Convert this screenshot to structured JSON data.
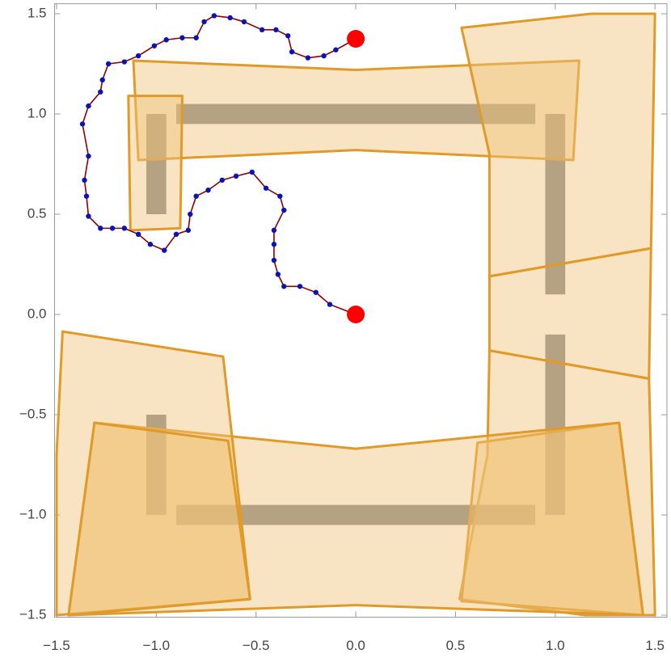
{
  "chart_data": {
    "type": "path-plot",
    "xlim": [
      -1.51,
      1.56
    ],
    "ylim": [
      -1.51,
      1.55
    ],
    "xticks": [
      {
        "value": -1.5,
        "label": "−1.5"
      },
      {
        "value": -1.0,
        "label": "−1.0"
      },
      {
        "value": -0.5,
        "label": "−0.5"
      },
      {
        "value": 0,
        "label": "0.0"
      },
      0.5,
      {
        "value": 1.0,
        "label": "1.0"
      },
      1.5
    ],
    "yticks": [
      {
        "value": -1.5,
        "label": "−1.5"
      },
      {
        "value": -1.0,
        "label": "−1.0"
      },
      {
        "value": -0.5,
        "label": "−0.5"
      },
      {
        "value": 0,
        "label": "0.0"
      },
      0.5,
      {
        "value": 1.0,
        "label": "1.0"
      },
      1.5
    ],
    "rectangles": [
      {
        "x": [
          -0.9,
          0.9
        ],
        "y": [
          0.95,
          1.05
        ]
      },
      {
        "x": [
          -1.05,
          -0.95
        ],
        "y": [
          0.5,
          1.0
        ]
      },
      {
        "x": [
          0.95,
          1.05
        ],
        "y": [
          0.1,
          1.0
        ]
      },
      {
        "x": [
          0.95,
          1.05
        ],
        "y": [
          -1.0,
          -0.1
        ]
      },
      {
        "x": [
          -0.9,
          0.9
        ],
        "y": [
          -1.05,
          -0.95
        ]
      },
      {
        "x": [
          -1.05,
          -0.95
        ],
        "y": [
          -1.0,
          -0.5
        ]
      }
    ],
    "rectangle_color": "#6e7378",
    "polygons": [
      {
        "x": [
          -1.115,
          0,
          1.12,
          1.09,
          0,
          -1.09
        ],
        "y": [
          1.266,
          1.22,
          1.266,
          0.77,
          0.82,
          0.77
        ]
      },
      {
        "x": [
          -1.14,
          -0.87,
          -0.88,
          -1.13
        ],
        "y": [
          1.09,
          1.09,
          0.43,
          0.42
        ]
      },
      {
        "x": [
          0.53,
          1.18,
          1.5,
          1.48,
          0.67,
          0.67
        ],
        "y": [
          1.43,
          1.5,
          1.5,
          0.33,
          0.19,
          0.8
        ]
      },
      {
        "x": [
          0.67,
          1.48,
          1.47,
          0.67
        ],
        "y": [
          0.19,
          0.33,
          -0.32,
          -0.18
        ]
      },
      {
        "x": [
          0.67,
          1.47,
          1.5,
          1.15,
          0.52,
          0.66
        ],
        "y": [
          -0.18,
          -0.32,
          -1.5,
          -1.5,
          -1.42,
          -0.7
        ]
      },
      {
        "x": [
          0.61,
          1.32,
          1.44,
          0.53
        ],
        "y": [
          -0.64,
          -0.54,
          -1.5,
          -1.43
        ]
      },
      {
        "x": [
          -1.31,
          0,
          1.32,
          1.44,
          0,
          -1.44
        ],
        "y": [
          -0.54,
          -0.67,
          -0.54,
          -1.5,
          -1.45,
          -1.5
        ]
      },
      {
        "x": [
          -1.47,
          -0.665,
          -0.53,
          -1.5,
          -1.5
        ],
        "y": [
          -0.085,
          -0.21,
          -1.42,
          -1.5,
          -0.7
        ]
      },
      {
        "x": [
          -1.31,
          -0.64,
          -0.53,
          -1.44
        ],
        "y": [
          -0.54,
          -0.63,
          -1.42,
          -1.5
        ]
      }
    ],
    "polygon_fill": "#f0c478",
    "polygon_stroke": "#e09a2a",
    "path": {
      "color": "#0a14b4",
      "line_color": "#8b0000",
      "endpoint_color": "#ff0000",
      "x": [
        0,
        -0.13,
        -0.2,
        -0.28,
        -0.36,
        -0.39,
        -0.41,
        -0.41,
        -0.41,
        -0.36,
        -0.38,
        -0.45,
        -0.52,
        -0.6,
        -0.67,
        -0.74,
        -0.8,
        -0.83,
        -0.84,
        -0.9,
        -0.96,
        -1.03,
        -1.09,
        -1.16,
        -1.22,
        -1.28,
        -1.34,
        -1.35,
        -1.36,
        -1.34,
        -1.37,
        -1.34,
        -1.28,
        -1.27,
        -1.24,
        -1.16,
        -1.09,
        -1.01,
        -0.95,
        -0.87,
        -0.8,
        -0.76,
        -0.71,
        -0.63,
        -0.56,
        -0.47,
        -0.4,
        -0.34,
        -0.32,
        -0.24,
        -0.16,
        -0.1,
        0
      ],
      "y": [
        0,
        0.05,
        0.11,
        0.14,
        0.14,
        0.2,
        0.27,
        0.35,
        0.42,
        0.52,
        0.59,
        0.63,
        0.71,
        0.69,
        0.67,
        0.62,
        0.59,
        0.5,
        0.42,
        0.4,
        0.32,
        0.35,
        0.4,
        0.43,
        0.43,
        0.43,
        0.49,
        0.59,
        0.67,
        0.79,
        0.95,
        1.04,
        1.11,
        1.17,
        1.25,
        1.26,
        1.29,
        1.34,
        1.37,
        1.38,
        1.38,
        1.46,
        1.49,
        1.48,
        1.46,
        1.42,
        1.42,
        1.39,
        1.31,
        1.28,
        1.29,
        1.32,
        1.375
      ]
    }
  }
}
